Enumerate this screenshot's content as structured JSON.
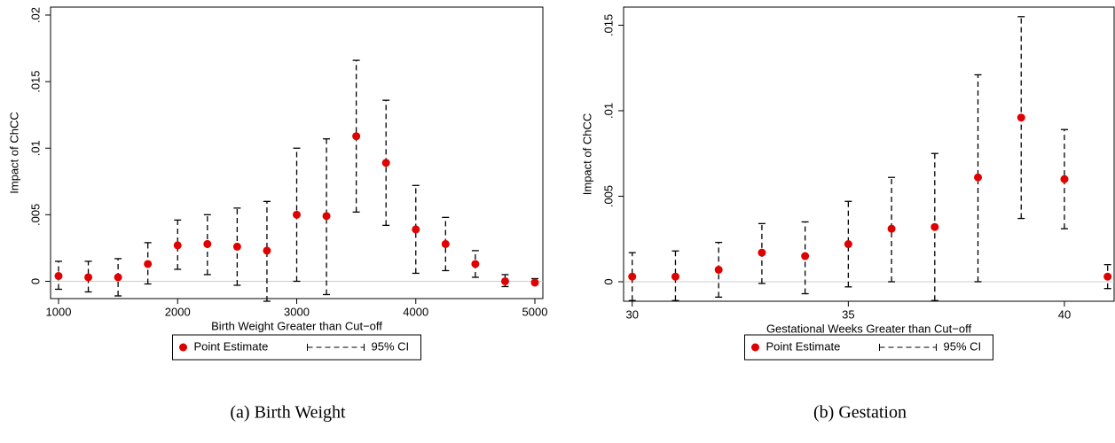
{
  "chart_data": [
    {
      "type": "scatter",
      "caption": "(a) Birth Weight",
      "xlabel": "Birth Weight Greater than Cut−off",
      "ylabel": "Impact of ChCC",
      "x": [
        1000,
        1250,
        1500,
        1750,
        2000,
        2250,
        2500,
        2750,
        3000,
        3250,
        3500,
        3750,
        4000,
        4250,
        4500,
        4750,
        5000
      ],
      "series": [
        {
          "name": "Point Estimate",
          "color": "#e00000",
          "values": [
            0.0004,
            0.0003,
            0.0003,
            0.0013,
            0.0027,
            0.0028,
            0.0026,
            0.0023,
            0.005,
            0.0049,
            0.0109,
            0.0089,
            0.0039,
            0.0028,
            0.0013,
            0.0,
            -0.0001
          ]
        },
        {
          "name": "95% CI",
          "color": "#000000",
          "low": [
            -0.0006,
            -0.0008,
            -0.0011,
            -0.0002,
            0.0009,
            0.0005,
            -0.0003,
            -0.0015,
            0.0,
            -0.001,
            0.0052,
            0.0042,
            0.0006,
            0.0008,
            0.0003,
            -0.0004,
            -0.0002
          ],
          "high": [
            0.0015,
            0.0015,
            0.0017,
            0.0029,
            0.0046,
            0.005,
            0.0055,
            0.006,
            0.01,
            0.0107,
            0.0166,
            0.0136,
            0.0072,
            0.0048,
            0.0023,
            0.0005,
            0.0002
          ]
        }
      ],
      "xlim": [
        933,
        5067
      ],
      "xticks": [
        1000,
        2000,
        3000,
        4000,
        5000
      ],
      "ylim": [
        -0.0013,
        0.0206
      ],
      "yticks": [
        0,
        {
          "value": 0.005,
          "label": ".005"
        },
        {
          "value": 0.01,
          "label": ".01"
        },
        {
          "value": 0.015,
          "label": ".015"
        },
        {
          "value": 0.02,
          "label": ".02"
        }
      ]
    },
    {
      "type": "scatter",
      "caption": "(b) Gestation",
      "xlabel": "Gestational Weeks Greater than Cut−off",
      "ylabel": "Impact of ChCC",
      "x": [
        30,
        31,
        32,
        33,
        34,
        35,
        36,
        37,
        38,
        39,
        40,
        41
      ],
      "series": [
        {
          "name": "Point Estimate",
          "color": "#e00000",
          "values": [
            0.0003,
            0.0003,
            0.0007,
            0.0017,
            0.0015,
            0.0022,
            0.0031,
            0.0032,
            0.0061,
            0.0096,
            0.006,
            0.0003
          ]
        },
        {
          "name": "95% CI",
          "color": "#000000",
          "low": [
            -0.0011,
            -0.0011,
            -0.0009,
            -0.0001,
            -0.0007,
            -0.0003,
            0.0,
            -0.0011,
            0.0,
            0.0037,
            0.0031,
            -0.0004
          ],
          "high": [
            0.0017,
            0.0018,
            0.0023,
            0.0034,
            0.0035,
            0.0047,
            0.0061,
            0.0075,
            0.0121,
            0.0155,
            0.0089,
            0.001
          ]
        }
      ],
      "xlim": [
        29.8,
        41.15
      ],
      "xticks": [
        30,
        35,
        40
      ],
      "ylim": [
        -0.00114,
        0.01606
      ],
      "yticks": [
        0,
        {
          "value": 0.005,
          "label": ".005"
        },
        {
          "value": 0.01,
          "label": ".01"
        },
        {
          "value": 0.015,
          "label": ".015"
        }
      ]
    }
  ]
}
